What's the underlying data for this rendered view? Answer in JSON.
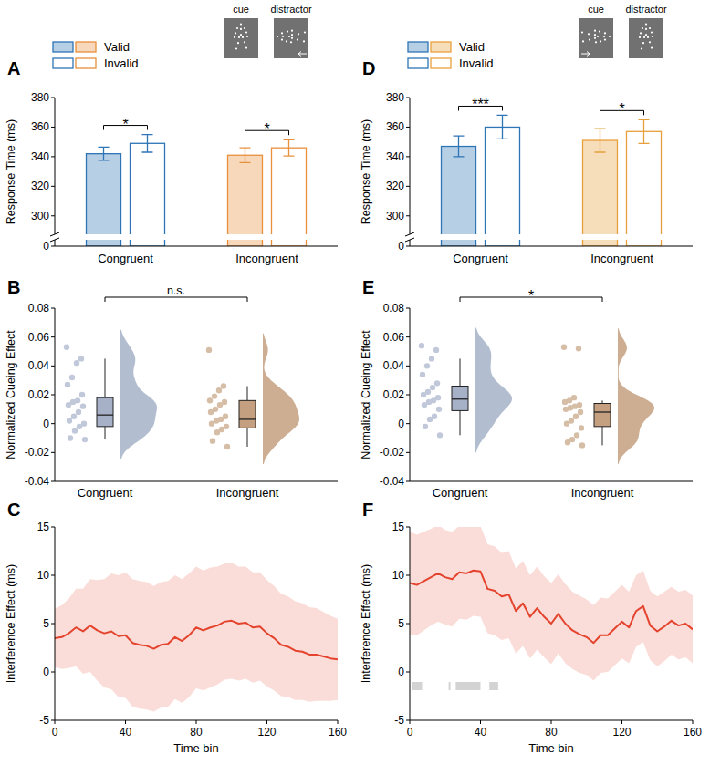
{
  "chart_data": [
    {
      "panel_label": "A",
      "type": "bar",
      "stimuli": [
        "cue",
        "distractor"
      ],
      "categories": [
        "Congruent",
        "Incongruent"
      ],
      "colors": [
        "#2e75b6",
        "#e8903c"
      ],
      "series": [
        {
          "name": "Valid",
          "marker": "filled",
          "values": [
            342,
            341
          ],
          "errors": [
            4.5,
            5
          ]
        },
        {
          "name": "Invalid",
          "marker": "hollow",
          "values": [
            349,
            346
          ],
          "errors": [
            6,
            5.5
          ]
        }
      ],
      "y_label": "Response Time (ms)",
      "ylim": [
        0,
        380
      ],
      "ybreak": [
        0,
        290
      ],
      "yticks": [
        0,
        300,
        320,
        340,
        360,
        380
      ],
      "legend": "upper left",
      "significance": [
        {
          "label": "*",
          "category": 0
        },
        {
          "label": "*",
          "category": 1
        }
      ]
    },
    {
      "panel_label": "B",
      "type": "box",
      "categories": [
        "Congruent",
        "Incongruent"
      ],
      "colors": [
        "#a6b1c8",
        "#c4a080"
      ],
      "groups": [
        {
          "points": [
            0.053,
            0.045,
            0.042,
            0.032,
            0.027,
            0.02,
            0.016,
            0.015,
            0.013,
            0.012,
            0.008,
            0.005,
            0.002,
            0,
            -0.002,
            -0.005,
            -0.01,
            -0.011
          ],
          "box": {
            "min": -0.011,
            "q1": -0.002,
            "median": 0.006,
            "q3": 0.018,
            "max": 0.045
          }
        },
        {
          "points": [
            0.051,
            0.026,
            0.023,
            0.019,
            0.016,
            0.015,
            0.013,
            0.01,
            0.008,
            0.005,
            0.003,
            0.002,
            0,
            -0.002,
            -0.004,
            -0.006,
            -0.012,
            -0.016
          ],
          "box": {
            "min": -0.016,
            "q1": -0.003,
            "median": 0.003,
            "q3": 0.016,
            "max": 0.026
          }
        }
      ],
      "y_label": "Normalized Cueing Effect",
      "ylim": [
        -0.04,
        0.08
      ],
      "yticks": [
        -0.04,
        -0.02,
        0,
        0.02,
        0.04,
        0.06,
        0.08
      ],
      "significance": [
        {
          "label": "n.s.",
          "categories": [
            0,
            1
          ]
        }
      ]
    },
    {
      "panel_label": "C",
      "type": "line",
      "color": "#e4432d",
      "x": [
        0,
        4,
        8,
        12,
        16,
        20,
        24,
        28,
        32,
        36,
        40,
        44,
        48,
        52,
        56,
        60,
        64,
        68,
        72,
        76,
        80,
        84,
        88,
        92,
        96,
        100,
        104,
        108,
        112,
        116,
        120,
        124,
        128,
        132,
        136,
        140,
        144,
        148,
        152,
        156,
        160
      ],
      "values": [
        3.5,
        3.6,
        4.0,
        4.6,
        4.2,
        4.8,
        4.3,
        4.0,
        4.2,
        3.7,
        3.8,
        3.0,
        2.8,
        2.7,
        2.4,
        2.8,
        2.9,
        3.6,
        3.2,
        3.8,
        4.6,
        4.3,
        4.6,
        4.8,
        5.2,
        5.3,
        5.0,
        5.1,
        4.6,
        4.7,
        4.0,
        3.5,
        2.8,
        2.6,
        2.2,
        2.1,
        1.8,
        1.8,
        1.6,
        1.4,
        1.3
      ],
      "errors": [
        3,
        3.3,
        3.6,
        4,
        4.4,
        4.8,
        5.2,
        5.6,
        6,
        6.3,
        6.5,
        6.6,
        6.6,
        6.6,
        6.5,
        6.5,
        6.5,
        6.4,
        6.4,
        6.4,
        6.3,
        6.2,
        6.2,
        6.1,
        6.0,
        6.0,
        5.9,
        5.8,
        5.7,
        5.6,
        5.5,
        5.4,
        5.3,
        5.2,
        5.1,
        5.0,
        4.9,
        4.8,
        4.6,
        4.4,
        4.2
      ],
      "x_label": "Time bin",
      "y_label": "Interference Effect (ms)",
      "xlim": [
        0,
        160
      ],
      "ylim": [
        -5,
        15
      ],
      "xticks": [
        0,
        40,
        80,
        120,
        160
      ],
      "yticks": [
        -5,
        0,
        5,
        10,
        15
      ]
    },
    {
      "panel_label": "D",
      "type": "bar",
      "stimuli": [
        "cue",
        "distractor"
      ],
      "categories": [
        "Congruent",
        "Incongruent"
      ],
      "colors": [
        "#2e75b6",
        "#e8a03c"
      ],
      "series": [
        {
          "name": "Valid",
          "marker": "filled",
          "values": [
            347,
            351
          ],
          "errors": [
            7,
            8
          ]
        },
        {
          "name": "Invalid",
          "marker": "hollow",
          "values": [
            360,
            357
          ],
          "errors": [
            8,
            8
          ]
        }
      ],
      "y_label": "Response Time (ms)",
      "ylim": [
        0,
        380
      ],
      "ybreak": [
        0,
        290
      ],
      "yticks": [
        0,
        300,
        320,
        340,
        360,
        380
      ],
      "legend": "upper left",
      "significance": [
        {
          "label": "***",
          "category": 0
        },
        {
          "label": "*",
          "category": 1
        }
      ]
    },
    {
      "panel_label": "E",
      "type": "box",
      "categories": [
        "Congruent",
        "Incongruent"
      ],
      "colors": [
        "#a6b1c8",
        "#c4a080"
      ],
      "groups": [
        {
          "points": [
            0.054,
            0.051,
            0.045,
            0.04,
            0.034,
            0.028,
            0.025,
            0.022,
            0.02,
            0.018,
            0.016,
            0.015,
            0.013,
            0.01,
            0.005,
            0.003,
            -0.002,
            -0.008
          ],
          "box": {
            "min": -0.008,
            "q1": 0.009,
            "median": 0.017,
            "q3": 0.026,
            "max": 0.045
          }
        },
        {
          "points": [
            0.053,
            0.052,
            0.018,
            0.016,
            0.015,
            0.013,
            0.012,
            0.011,
            0.01,
            0.008,
            0.005,
            0.002,
            0,
            -0.003,
            -0.008,
            -0.011,
            -0.013,
            -0.015
          ],
          "box": {
            "min": -0.015,
            "q1": -0.002,
            "median": 0.008,
            "q3": 0.014,
            "max": 0.016
          }
        }
      ],
      "y_label": "Normalized Cueing Effect",
      "ylim": [
        -0.04,
        0.08
      ],
      "yticks": [
        -0.04,
        -0.02,
        0,
        0.02,
        0.04,
        0.06,
        0.08
      ],
      "significance": [
        {
          "label": "*",
          "categories": [
            0,
            1
          ]
        }
      ]
    },
    {
      "panel_label": "F",
      "type": "line",
      "color": "#e4432d",
      "x": [
        0,
        4,
        8,
        12,
        16,
        20,
        24,
        28,
        32,
        36,
        40,
        44,
        48,
        52,
        56,
        60,
        64,
        68,
        72,
        76,
        80,
        84,
        88,
        92,
        96,
        100,
        104,
        108,
        112,
        116,
        120,
        124,
        128,
        132,
        136,
        140,
        144,
        148,
        152,
        156,
        160
      ],
      "values": [
        9.2,
        9.0,
        9.4,
        9.8,
        10.2,
        9.8,
        9.6,
        10.3,
        10.2,
        10.5,
        10.4,
        8.6,
        8.4,
        7.8,
        8.0,
        6.3,
        7.1,
        5.7,
        6.6,
        5.7,
        5.0,
        6.0,
        5.0,
        4.3,
        3.9,
        3.6,
        3.0,
        3.8,
        3.8,
        4.5,
        5.2,
        4.6,
        6.3,
        6.8,
        4.8,
        4.2,
        4.7,
        5.3,
        4.8,
        5.0,
        4.4
      ],
      "errors": [
        5.3,
        5.2,
        5.1,
        5.0,
        5.0,
        4.9,
        4.9,
        4.8,
        4.8,
        4.7,
        4.7,
        4.6,
        4.6,
        4.5,
        4.5,
        4.4,
        4.4,
        4.3,
        4.3,
        4.2,
        4.2,
        4.1,
        4.1,
        4.0,
        4.0,
        3.9,
        3.9,
        3.9,
        3.8,
        3.8,
        3.8,
        3.7,
        3.7,
        3.7,
        3.6,
        3.6,
        3.6,
        3.5,
        3.5,
        3.5,
        3.5
      ],
      "significant_bins": [
        [
          1,
          7
        ],
        [
          22,
          23
        ],
        [
          26,
          40
        ],
        [
          45,
          50
        ]
      ],
      "x_label": "Time bin",
      "y_label": "Interference Effect (ms)",
      "xlim": [
        0,
        160
      ],
      "ylim": [
        -5,
        15
      ],
      "xticks": [
        0,
        40,
        80,
        120,
        160
      ],
      "yticks": [
        -5,
        0,
        5,
        10,
        15
      ]
    }
  ]
}
